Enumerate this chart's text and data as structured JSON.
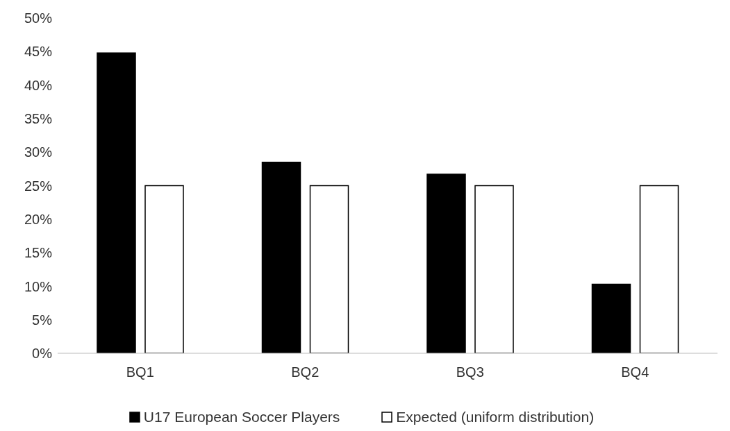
{
  "chart_data": {
    "type": "bar",
    "categories": [
      "BQ1",
      "BQ2",
      "BQ3",
      "BQ4"
    ],
    "series": [
      {
        "name": "U17 European Soccer Players",
        "color": "#000000",
        "values": [
          44.8,
          28.5,
          26.7,
          10.3
        ]
      },
      {
        "name": "Expected (uniform distribution)",
        "color": "#ffffff",
        "values": [
          25,
          25,
          25,
          25
        ]
      }
    ],
    "ylim": [
      0,
      50
    ],
    "yticks": [
      {
        "value": 0,
        "label": "0%"
      },
      {
        "value": 5,
        "label": "5%"
      },
      {
        "value": 10,
        "label": "10%"
      },
      {
        "value": 15,
        "label": "15%"
      },
      {
        "value": 20,
        "label": "20%"
      },
      {
        "value": 25,
        "label": "25%"
      },
      {
        "value": 30,
        "label": "30%"
      },
      {
        "value": 35,
        "label": "35%"
      },
      {
        "value": 40,
        "label": "40%"
      },
      {
        "value": 45,
        "label": "45%"
      },
      {
        "value": 50,
        "label": "50%"
      }
    ],
    "grid": false,
    "legend": "bottom"
  }
}
